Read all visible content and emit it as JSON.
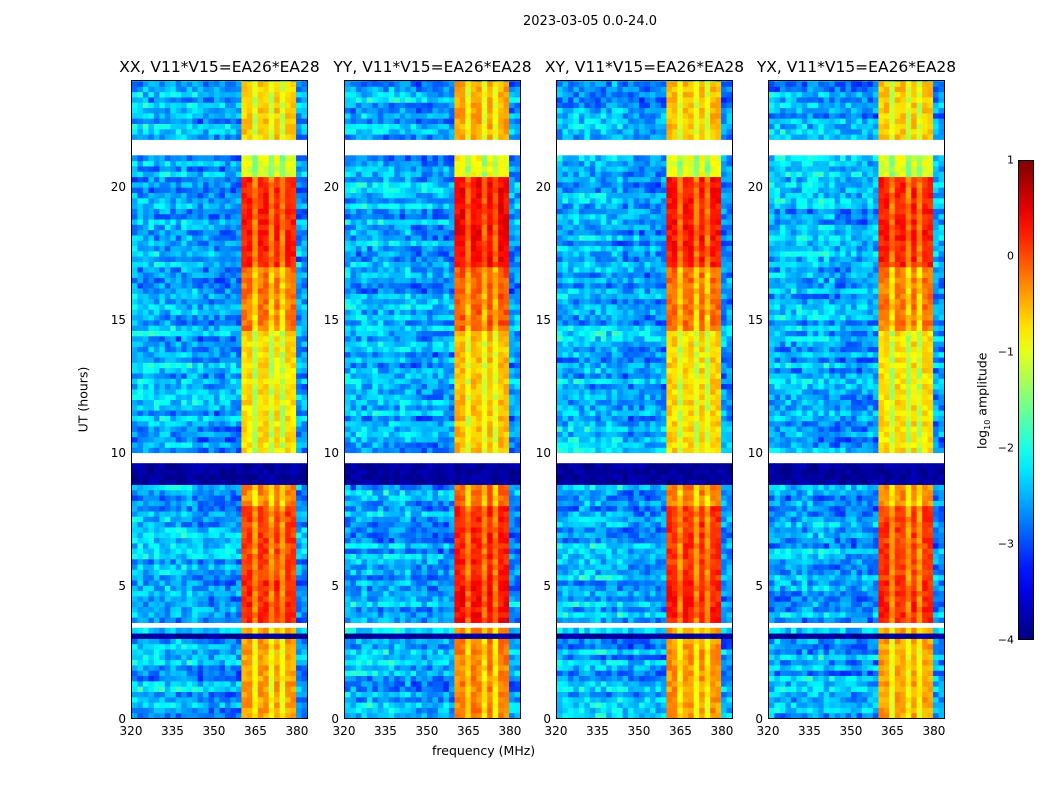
{
  "suptitle": "2023-03-05 0.0-24.0",
  "xlabel": "frequency (MHz)",
  "ylabel": "UT (hours)",
  "colorbar": {
    "label_prefix": "log",
    "label_sub": "10",
    "label_suffix": " amplitude",
    "ticks": [
      "1",
      "0",
      "−1",
      "−2",
      "−3",
      "−4"
    ],
    "range": [
      -4,
      1
    ],
    "colormap": "jet"
  },
  "chart_data": {
    "type": "heatmap",
    "xlim": [
      320,
      384
    ],
    "ylim": [
      0,
      24
    ],
    "xticks": [
      "320",
      "335",
      "350",
      "365",
      "380"
    ],
    "xtick_values": [
      320,
      335,
      350,
      365,
      380
    ],
    "yticks": [
      "0",
      "5",
      "10",
      "15",
      "20"
    ],
    "ytick_values": [
      0,
      5,
      10,
      15,
      20
    ],
    "panels": [
      {
        "title": "XX, V11*V15=EA26*EA28",
        "band_offset": 0.0
      },
      {
        "title": "YY, V11*V15=EA26*EA28",
        "band_offset": 0.15
      },
      {
        "title": "XY, V11*V15=EA26*EA28",
        "band_offset": 0.05
      },
      {
        "title": "YX, V11*V15=EA26*EA28",
        "band_offset": 0.0
      }
    ],
    "background_level": -2.6,
    "band_freq_range": [
      360.5,
      380
    ],
    "band_notches_mhz": [
      365.5,
      370.5,
      375.5
    ],
    "band_levels_by_time": [
      {
        "t": [
          0,
          3.4
        ],
        "level": -0.4
      },
      {
        "t": [
          3.7,
          5.2
        ],
        "level": 0.2
      },
      {
        "t": [
          5.2,
          8.0
        ],
        "level": 0.1
      },
      {
        "t": [
          8.0,
          9.5
        ],
        "level": -0.3
      },
      {
        "t": [
          9.9,
          14.5
        ],
        "level": -0.7
      },
      {
        "t": [
          14.5,
          17.0
        ],
        "level": -0.2
      },
      {
        "t": [
          17.0,
          20.3
        ],
        "level": 0.25
      },
      {
        "t": [
          20.4,
          21.1
        ],
        "level": -1.0
      },
      {
        "t": [
          21.8,
          24
        ],
        "level": -0.6
      }
    ],
    "blank_time_ranges": [
      [
        3.4,
        3.7
      ],
      [
        9.5,
        9.9
      ],
      [
        20.3,
        20.4
      ],
      [
        21.1,
        21.8
      ]
    ],
    "dark_time_ranges": [
      [
        8.9,
        9.5
      ],
      [
        3.1,
        3.3
      ]
    ]
  }
}
